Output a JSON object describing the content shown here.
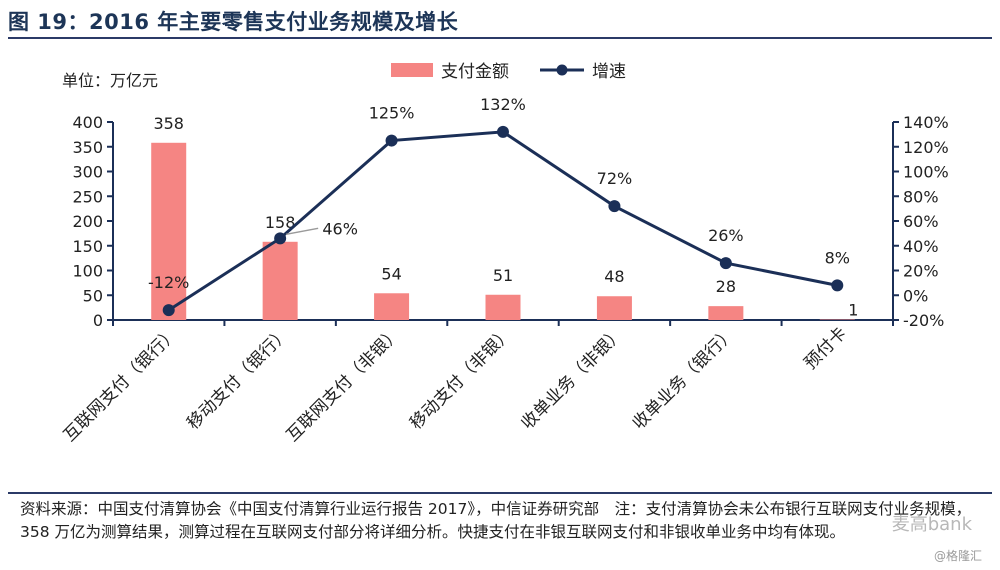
{
  "title": "图 19：2016 年主要零售支付业务规模及增长",
  "unit_label": "单位：万亿元",
  "footer": "资料来源：中国支付清算协会《中国支付清算行业运行报告 2017》，中信证券研究部　注：支付清算协会未公布银行互联网支付业务规模，358 万亿为测算结果，测算过程在互联网支付部分将详细分析。快捷支付在非银互联网支付和非银收单业务中均有体现。",
  "watermark": "麦高bank",
  "watermark_sub": "@格隆汇",
  "colors": {
    "bar": "#f58583",
    "line": "#1b2f57",
    "axis": "#1b2f57",
    "title": "#1d3557"
  },
  "chart_data": {
    "type": "bar",
    "categories": [
      "互联网支付（银行）",
      "移动支付（银行）",
      "互联网支付（非银）",
      "移动支付（非银）",
      "收单业务（非银）",
      "收单业务（银行）",
      "预付卡"
    ],
    "series": [
      {
        "name": "支付金额",
        "type": "bar",
        "axis": "left",
        "values": [
          358,
          158,
          54,
          51,
          48,
          28,
          1
        ],
        "labels": [
          "358",
          "158",
          "54",
          "51",
          "48",
          "28",
          "1"
        ]
      },
      {
        "name": "增速",
        "type": "line",
        "axis": "right",
        "values": [
          -12,
          46,
          125,
          132,
          72,
          26,
          8
        ],
        "labels": [
          "-12%",
          "46%",
          "125%",
          "132%",
          "72%",
          "26%",
          "8%"
        ]
      }
    ],
    "left_axis": {
      "ylim": [
        0,
        400
      ],
      "ticks": [
        "400",
        "350",
        "300",
        "250",
        "200",
        "150",
        "100",
        "50",
        "0"
      ]
    },
    "right_axis": {
      "ylim": [
        -20,
        140
      ],
      "ticks": [
        "140%",
        "120%",
        "100%",
        "80%",
        "60%",
        "40%",
        "20%",
        "0%",
        "-20%"
      ]
    },
    "legend_position": "top-center",
    "grid": false
  }
}
